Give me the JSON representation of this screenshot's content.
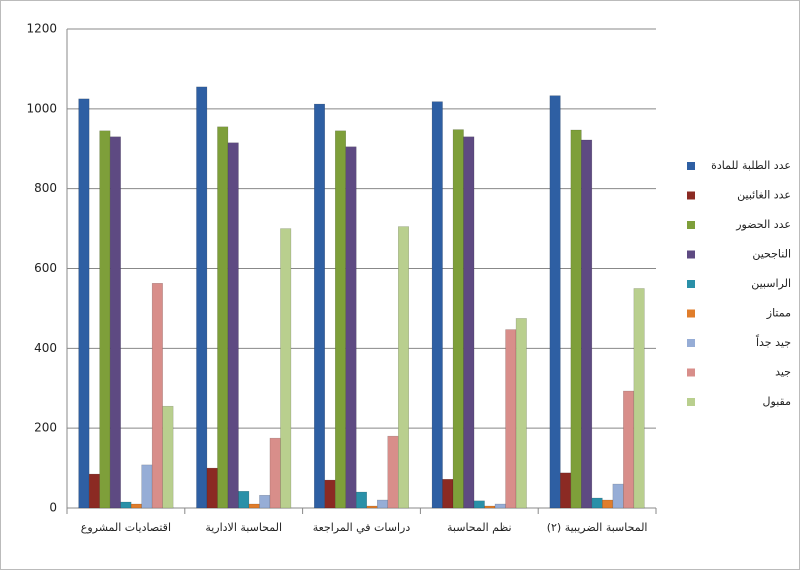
{
  "chart_data": {
    "type": "bar",
    "categories": [
      "اقتصاديات المشروع",
      "المحاسبة الادارية",
      "دراسات في المراجعة",
      "نظم المحاسبة",
      "المحاسبة الضريبية (٢)"
    ],
    "series": [
      {
        "name": "عدد الطلبة للمادة",
        "color": "#2e5fa3",
        "values": [
          1025,
          1055,
          1012,
          1018,
          1033
        ]
      },
      {
        "name": "عدد الغائبين",
        "color": "#8b2a23",
        "values": [
          85,
          100,
          70,
          72,
          88
        ]
      },
      {
        "name": "عدد الحضور",
        "color": "#7e9f3a",
        "values": [
          945,
          955,
          945,
          948,
          947
        ]
      },
      {
        "name": "الناجحين",
        "color": "#5e4a82",
        "values": [
          930,
          915,
          905,
          930,
          922
        ]
      },
      {
        "name": "الراسبين",
        "color": "#2a90a8",
        "values": [
          15,
          42,
          40,
          18,
          25
        ]
      },
      {
        "name": "ممتاز",
        "color": "#e07d2b",
        "values": [
          10,
          10,
          5,
          5,
          20
        ]
      },
      {
        "name": "جيد جداً",
        "color": "#96add6",
        "values": [
          108,
          32,
          20,
          10,
          60
        ]
      },
      {
        "name": "جيد",
        "color": "#d88e8a",
        "values": [
          563,
          175,
          180,
          447,
          293
        ]
      },
      {
        "name": "مقبول",
        "color": "#b9cf8e",
        "values": [
          255,
          700,
          705,
          475,
          550
        ]
      }
    ],
    "ylim": [
      0,
      1200
    ],
    "yticks": [
      0,
      200,
      400,
      600,
      800,
      1000,
      1200
    ],
    "grid": true,
    "legend": "right"
  }
}
